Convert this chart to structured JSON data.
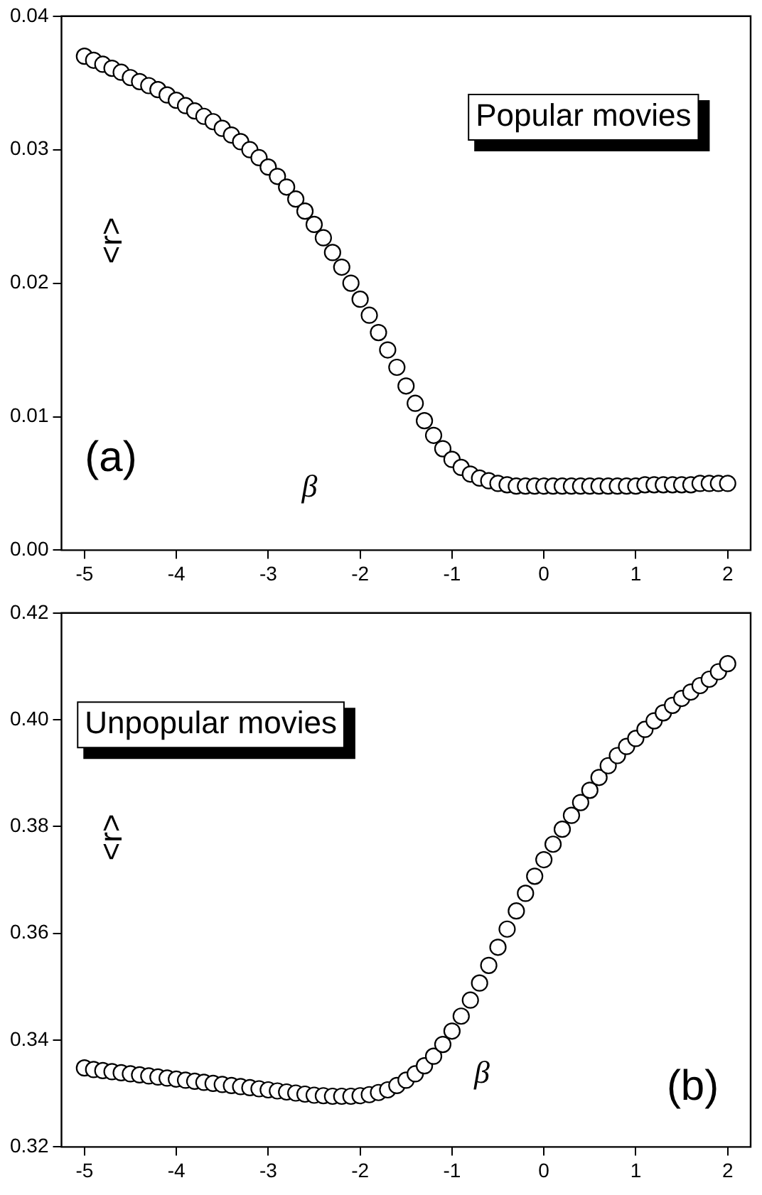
{
  "chart_data": [
    {
      "type": "scatter",
      "xlabel": "β",
      "ylabel": "<r>",
      "annotations": [
        "Popular movies",
        "(a)"
      ],
      "marker": "circle",
      "grid": false,
      "legend": false,
      "xlim": [
        -5.25,
        2.25
      ],
      "xticks": [
        -5,
        -4,
        -3,
        -2,
        -1,
        0,
        1,
        2
      ],
      "ylim": [
        0,
        0.04
      ],
      "yticks": [
        {
          "value": 0,
          "label": "0.00"
        },
        0.01,
        0.02,
        0.03,
        0.04
      ],
      "series": [
        {
          "color": "#000000",
          "x": [
            -5.0,
            -4.9,
            -4.8,
            -4.7,
            -4.6,
            -4.5,
            -4.4,
            -4.3,
            -4.2,
            -4.1,
            -4.0,
            -3.9,
            -3.8,
            -3.7,
            -3.6,
            -3.5,
            -3.4,
            -3.3,
            -3.2,
            -3.1,
            -3.0,
            -2.9,
            -2.8,
            -2.7,
            -2.6,
            -2.5,
            -2.4,
            -2.3,
            -2.2,
            -2.1,
            -2.0,
            -1.9,
            -1.8,
            -1.7,
            -1.6,
            -1.5,
            -1.4,
            -1.3,
            -1.2,
            -1.1,
            -1.0,
            -0.9,
            -0.8,
            -0.7,
            -0.6,
            -0.5,
            -0.4,
            -0.3,
            -0.2,
            -0.1,
            0.0,
            0.1,
            0.2,
            0.3,
            0.4,
            0.5,
            0.6,
            0.7,
            0.8,
            0.9,
            1.0,
            1.1,
            1.2,
            1.3,
            1.4,
            1.5,
            1.6,
            1.7,
            1.8,
            1.9,
            2.0
          ],
          "values": [
            0.037,
            0.0367,
            0.0364,
            0.0361,
            0.0358,
            0.0354,
            0.0351,
            0.0348,
            0.0345,
            0.0341,
            0.0337,
            0.0333,
            0.0329,
            0.0325,
            0.0321,
            0.0316,
            0.0311,
            0.0306,
            0.03,
            0.0294,
            0.0287,
            0.028,
            0.0272,
            0.0263,
            0.0254,
            0.0244,
            0.0234,
            0.0223,
            0.0212,
            0.02,
            0.0188,
            0.0176,
            0.0163,
            0.015,
            0.0137,
            0.0123,
            0.011,
            0.0097,
            0.0086,
            0.0076,
            0.0068,
            0.0062,
            0.0057,
            0.0054,
            0.0052,
            0.005,
            0.0049,
            0.0048,
            0.0048,
            0.0048,
            0.0048,
            0.0048,
            0.0048,
            0.0048,
            0.0048,
            0.0048,
            0.0048,
            0.0048,
            0.0048,
            0.0048,
            0.0048,
            0.0049,
            0.0049,
            0.0049,
            0.0049,
            0.0049,
            0.0049,
            0.005,
            0.005,
            0.005,
            0.005
          ]
        }
      ]
    },
    {
      "type": "scatter",
      "xlabel": "β",
      "ylabel": "<r>",
      "annotations": [
        "Unpopular movies",
        "(b)"
      ],
      "marker": "circle",
      "grid": false,
      "legend": false,
      "xlim": [
        -5.25,
        2.25
      ],
      "xticks": [
        -5,
        -4,
        -3,
        -2,
        -1,
        0,
        1,
        2
      ],
      "ylim": [
        0.32,
        0.42
      ],
      "yticks": [
        0.32,
        0.34,
        0.36,
        0.38,
        {
          "value": 0.4,
          "label": "0.40"
        },
        0.42
      ],
      "series": [
        {
          "color": "#000000",
          "x": [
            -5.0,
            -4.9,
            -4.8,
            -4.7,
            -4.6,
            -4.5,
            -4.4,
            -4.3,
            -4.2,
            -4.1,
            -4.0,
            -3.9,
            -3.8,
            -3.7,
            -3.6,
            -3.5,
            -3.4,
            -3.3,
            -3.2,
            -3.1,
            -3.0,
            -2.9,
            -2.8,
            -2.7,
            -2.6,
            -2.5,
            -2.4,
            -2.3,
            -2.2,
            -2.1,
            -2.0,
            -1.9,
            -1.8,
            -1.7,
            -1.6,
            -1.5,
            -1.4,
            -1.3,
            -1.2,
            -1.1,
            -1.0,
            -0.9,
            -0.8,
            -0.7,
            -0.6,
            -0.5,
            -0.4,
            -0.3,
            -0.2,
            -0.1,
            0.0,
            0.1,
            0.2,
            0.3,
            0.4,
            0.5,
            0.6,
            0.7,
            0.8,
            0.9,
            1.0,
            1.1,
            1.2,
            1.3,
            1.4,
            1.5,
            1.6,
            1.7,
            1.8,
            1.9,
            2.0
          ],
          "values": [
            0.3348,
            0.3345,
            0.3343,
            0.3341,
            0.3339,
            0.3337,
            0.3335,
            0.3333,
            0.3331,
            0.3329,
            0.3327,
            0.3325,
            0.3323,
            0.3321,
            0.3319,
            0.3317,
            0.3315,
            0.3313,
            0.3311,
            0.3309,
            0.3307,
            0.3305,
            0.3303,
            0.3301,
            0.3299,
            0.3297,
            0.3296,
            0.3295,
            0.3295,
            0.3295,
            0.3296,
            0.3298,
            0.3302,
            0.3307,
            0.3315,
            0.3325,
            0.3337,
            0.3352,
            0.337,
            0.3392,
            0.3417,
            0.3445,
            0.3475,
            0.3507,
            0.354,
            0.3574,
            0.3608,
            0.3642,
            0.3675,
            0.3707,
            0.3738,
            0.3767,
            0.3795,
            0.3821,
            0.3845,
            0.3868,
            0.3892,
            0.3914,
            0.3933,
            0.395,
            0.3965,
            0.3982,
            0.3998,
            0.4013,
            0.4027,
            0.404,
            0.4052,
            0.4064,
            0.4076,
            0.409,
            0.4105
          ]
        }
      ]
    }
  ]
}
